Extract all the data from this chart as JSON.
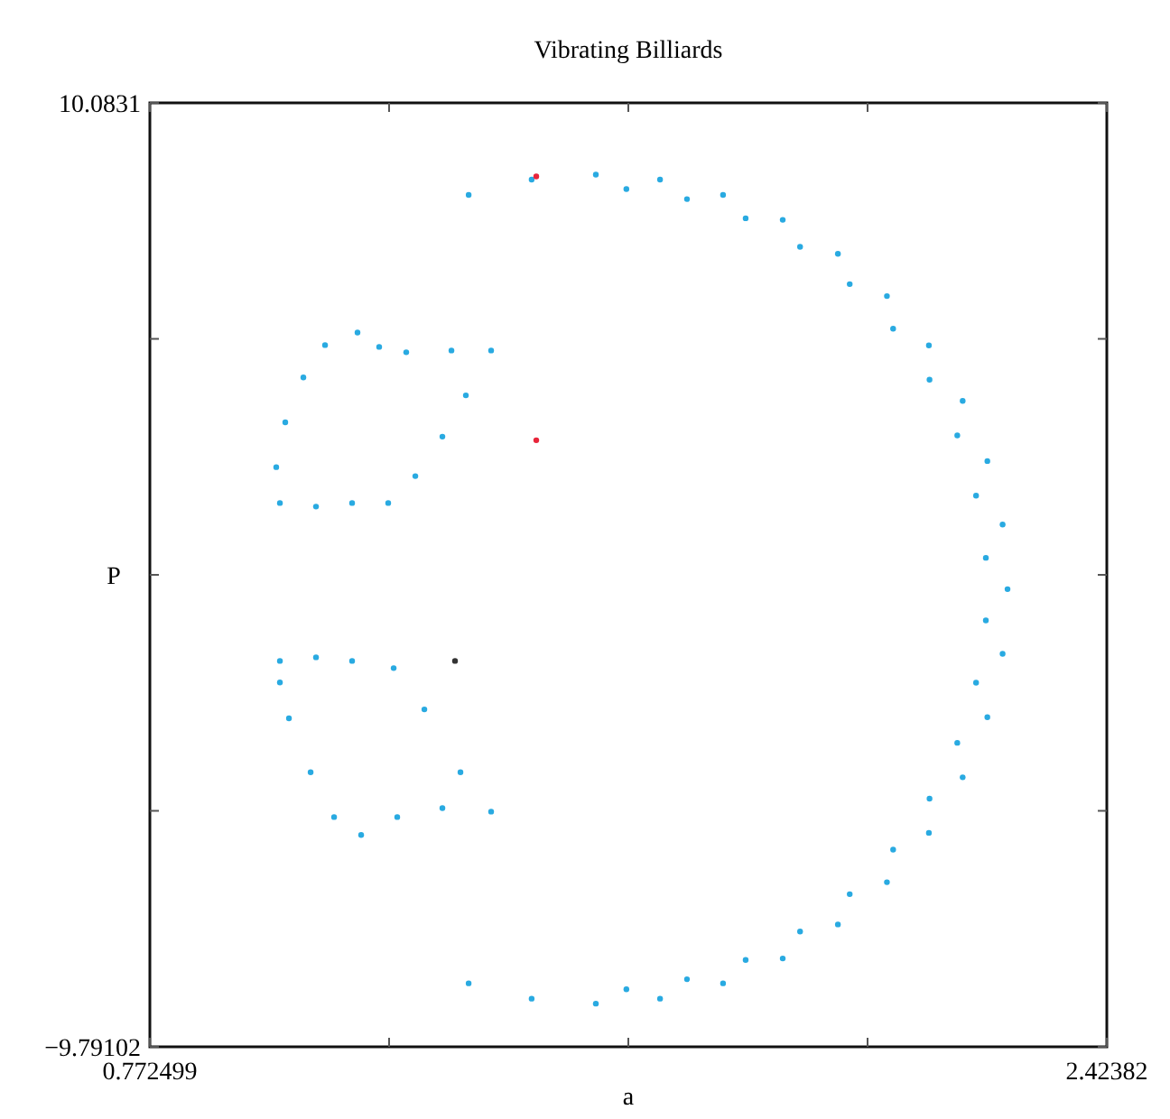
{
  "chart_data": {
    "type": "scatter",
    "title": "Vibrating Billiards",
    "xlabel": "a",
    "ylabel": "P",
    "xlim": [
      0.772499,
      2.42382
    ],
    "ylim": [
      -9.79102,
      10.0831
    ],
    "xticks": [
      0.772499,
      {
        "value": 1.18533,
        "label": null
      },
      {
        "value": 1.59816,
        "label": null
      },
      {
        "value": 2.01099,
        "label": null
      },
      2.42382
    ],
    "yticks": [
      -9.79102,
      {
        "value": -4.82249,
        "label": null
      },
      {
        "value": 0.14604,
        "label": null
      },
      {
        "value": 5.11457,
        "label": null
      },
      10.0831
    ],
    "grid": false,
    "marker": "circle",
    "series": [
      {
        "color": "#29aae1",
        "x": [
          1.3226,
          1.4313,
          1.5421,
          1.6529,
          1.7616,
          1.8646,
          1.9598,
          2.0444,
          2.1168,
          2.1751,
          2.2177,
          2.244,
          2.2525,
          2.244,
          2.2177,
          2.1751,
          2.1168,
          2.0444,
          1.9598,
          1.8646,
          1.7616,
          1.6529,
          1.5421,
          1.4313,
          1.3226,
          1.5948,
          1.6994,
          1.8006,
          1.8945,
          1.9802,
          2.0551,
          2.1179,
          2.1658,
          2.1982,
          2.2151,
          2.2151,
          2.1982,
          2.1658,
          2.1179,
          2.0551,
          1.9802,
          1.8945,
          1.8006,
          1.6994,
          1.5948,
          1.1308,
          1.1682,
          1.2149,
          1.2929,
          1.3614,
          1.3178,
          1.2773,
          1.2306,
          1.1838,
          1.1215,
          1.0592,
          0.9969,
          0.9906,
          1.0062,
          1.0374,
          1.0748,
          0.9969,
          1.0592,
          1.1215,
          1.1932,
          1.2462,
          1.3085,
          1.3614,
          1.2773,
          1.1994,
          1.1371,
          1.0904,
          1.0499,
          1.0125,
          0.9969
        ],
        "values": [
          8.144,
          8.467,
          8.572,
          8.467,
          8.144,
          7.621,
          6.905,
          6.015,
          4.976,
          3.807,
          2.542,
          1.206,
          -0.155,
          -1.516,
          -2.852,
          -4.117,
          -5.286,
          -6.325,
          -7.215,
          -7.931,
          -8.454,
          -8.777,
          -8.882,
          -8.777,
          -8.454,
          8.27,
          8.058,
          7.653,
          7.053,
          6.267,
          5.329,
          4.256,
          3.081,
          1.814,
          0.504,
          -0.814,
          -2.124,
          -3.391,
          -4.566,
          -5.639,
          -6.577,
          -7.363,
          -7.963,
          -8.368,
          -8.58,
          5.247,
          4.945,
          4.832,
          4.869,
          4.869,
          3.925,
          3.056,
          2.225,
          1.658,
          1.658,
          1.583,
          1.658,
          2.414,
          3.358,
          4.303,
          4.983,
          -1.667,
          -1.591,
          -1.667,
          -1.818,
          -2.687,
          -4.009,
          -4.84,
          -4.765,
          -4.954,
          -5.332,
          -4.954,
          -4.009,
          -2.876,
          -2.12
        ]
      },
      {
        "color": "#e8253a",
        "x": [
          1.4393,
          1.4393
        ],
        "values": [
          8.534,
          2.98
        ]
      },
      {
        "color": "#333333",
        "x": [
          1.2991
        ],
        "values": [
          -1.667
        ]
      }
    ]
  }
}
